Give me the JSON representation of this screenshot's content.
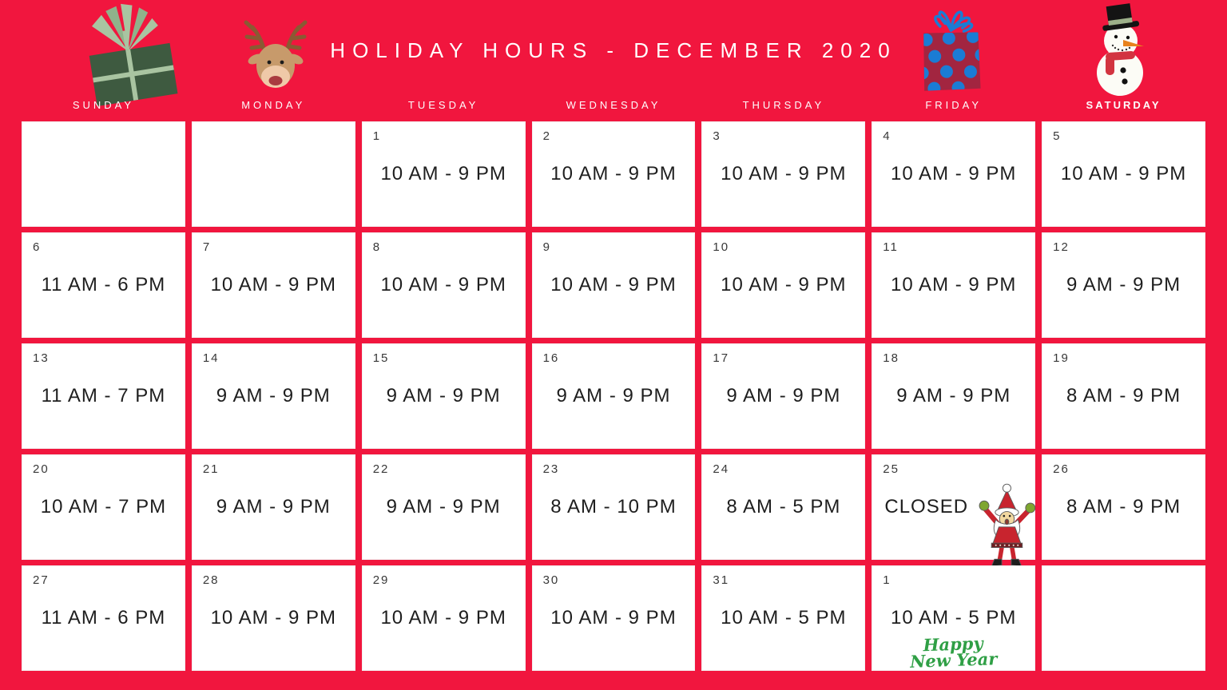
{
  "title": "HOLIDAY HOURS - DECEMBER 2020",
  "weekdays": [
    "SUNDAY",
    "MONDAY",
    "TUESDAY",
    "WEDNESDAY",
    "THURSDAY",
    "FRIDAY",
    "SATURDAY"
  ],
  "colors": {
    "background_red": "#F1163E",
    "cell_white": "#FFFFFF",
    "title_text": "#FFFFFF",
    "hours_text": "#1E1E1E",
    "day_number_text": "#383838",
    "new_year_green": "#2F9F45",
    "gift_green": "#3E5A40",
    "ribbon_sage": "#A9C4A1",
    "polka_blue": "#1B7CD4",
    "polka_box_maroon": "#A22540",
    "santa_red": "#C8242E",
    "mitten_green": "#7FA630"
  },
  "header_icons": [
    "gift-icon",
    "reindeer-icon",
    "polka-dot-gift-icon",
    "snowman-icon"
  ],
  "calendar": {
    "cells": [
      {
        "day": "",
        "hours": ""
      },
      {
        "day": "",
        "hours": ""
      },
      {
        "day": "1",
        "hours": "10 AM - 9 PM"
      },
      {
        "day": "2",
        "hours": "10 AM - 9 PM"
      },
      {
        "day": "3",
        "hours": "10 AM - 9 PM"
      },
      {
        "day": "4",
        "hours": "10 AM - 9 PM"
      },
      {
        "day": "5",
        "hours": "10 AM - 9 PM"
      },
      {
        "day": "6",
        "hours": "11 AM - 6 PM"
      },
      {
        "day": "7",
        "hours": "10 AM - 9 PM"
      },
      {
        "day": "8",
        "hours": "10 AM - 9 PM"
      },
      {
        "day": "9",
        "hours": "10 AM - 9 PM"
      },
      {
        "day": "10",
        "hours": "10 AM - 9 PM"
      },
      {
        "day": "11",
        "hours": "10 AM - 9 PM"
      },
      {
        "day": "12",
        "hours": "9 AM - 9 PM"
      },
      {
        "day": "13",
        "hours": "11 AM - 7 PM"
      },
      {
        "day": "14",
        "hours": "9 AM - 9 PM"
      },
      {
        "day": "15",
        "hours": "9 AM - 9 PM"
      },
      {
        "day": "16",
        "hours": "9 AM - 9 PM"
      },
      {
        "day": "17",
        "hours": "9 AM - 9 PM"
      },
      {
        "day": "18",
        "hours": "9 AM - 9 PM"
      },
      {
        "day": "19",
        "hours": "8 AM - 9 PM"
      },
      {
        "day": "20",
        "hours": "10 AM - 7 PM"
      },
      {
        "day": "21",
        "hours": "9 AM - 9 PM"
      },
      {
        "day": "22",
        "hours": "9 AM - 9 PM"
      },
      {
        "day": "23",
        "hours": "8 AM - 10 PM"
      },
      {
        "day": "24",
        "hours": "8 AM - 5 PM"
      },
      {
        "day": "25",
        "hours": "CLOSED",
        "icon": "santa"
      },
      {
        "day": "26",
        "hours": "8 AM - 9 PM"
      },
      {
        "day": "27",
        "hours": "11 AM - 6 PM"
      },
      {
        "day": "28",
        "hours": "10 AM - 9 PM"
      },
      {
        "day": "29",
        "hours": "10 AM - 9 PM"
      },
      {
        "day": "30",
        "hours": "10 AM - 9 PM"
      },
      {
        "day": "31",
        "hours": "10 AM - 5 PM"
      },
      {
        "day": "1",
        "hours": "10 AM - 5 PM",
        "note_lines": [
          "Happy",
          "New Year"
        ]
      },
      {
        "day": "",
        "hours": ""
      }
    ]
  }
}
